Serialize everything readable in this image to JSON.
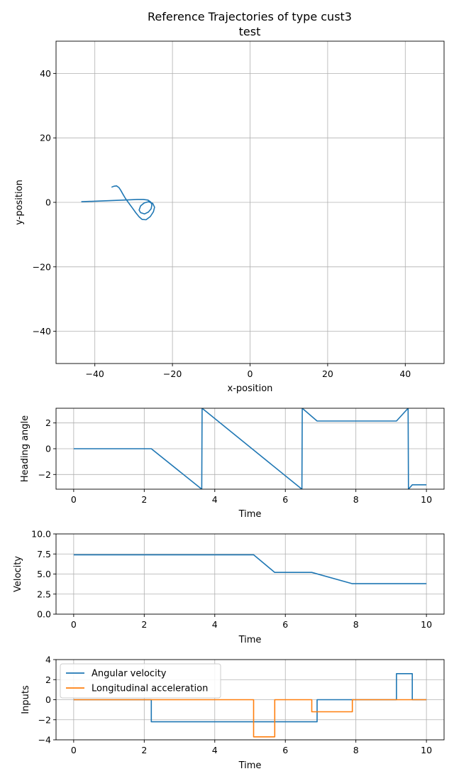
{
  "title_line1": "Reference Trajectories of type cust3",
  "title_line2": "test",
  "colors": {
    "series1": "#1f77b4",
    "series2": "#ff7f0e",
    "grid": "#b0b0b0"
  },
  "chart_data": [
    {
      "type": "line",
      "title": "Reference Trajectories of type cust3\ntest",
      "xlabel": "x-position",
      "ylabel": "y-position",
      "xlim": [
        -50,
        50
      ],
      "ylim": [
        -50,
        50
      ],
      "xticks": [
        -40,
        -20,
        0,
        20,
        40
      ],
      "yticks": [
        -40,
        -20,
        0,
        20,
        40
      ],
      "xtick_labels": [
        "−40",
        "−20",
        "0",
        "20",
        "40"
      ],
      "ytick_labels": [
        "−40",
        "−20",
        "0",
        "20",
        "40"
      ],
      "grid": true,
      "series": [
        {
          "x": [
            -43.5,
            -39,
            -35,
            -31,
            -29,
            -27.5,
            -26.3,
            -25.6,
            -25.3,
            -25.5,
            -26.2,
            -27.2,
            -28.2,
            -28.6,
            -28.2,
            -27.3,
            -26.2,
            -25.1,
            -24.6,
            -24.9,
            -25.7,
            -26.8,
            -27.8,
            -28.6,
            -29.4,
            -30.3,
            -31.2,
            -32.1,
            -32.8,
            -33.3,
            -33.8,
            -34.4,
            -35.1,
            -35.7
          ],
          "y": [
            0.2,
            0.4,
            0.6,
            0.8,
            0.9,
            0.9,
            0.7,
            0.1,
            -0.8,
            -2.0,
            -3.0,
            -3.6,
            -3.2,
            -2.4,
            -1.1,
            -0.2,
            0.2,
            -0.3,
            -1.5,
            -2.9,
            -4.4,
            -5.4,
            -5.3,
            -4.5,
            -3.3,
            -1.8,
            -0.3,
            1.2,
            2.6,
            3.7,
            4.6,
            5.1,
            5.0,
            4.7
          ]
        }
      ]
    },
    {
      "type": "line",
      "xlabel": "Time",
      "ylabel": "Heading angle",
      "xlim": [
        -0.5,
        10.5
      ],
      "ylim": [
        -3.14,
        3.14
      ],
      "xticks": [
        0,
        2,
        4,
        6,
        8,
        10
      ],
      "yticks": [
        -2,
        0,
        2
      ],
      "xtick_labels": [
        "0",
        "2",
        "4",
        "6",
        "8",
        "10"
      ],
      "ytick_labels": [
        "−2",
        "0",
        "2"
      ],
      "grid": true,
      "series": [
        {
          "x": [
            0,
            2.2,
            3.63,
            3.64,
            6.47,
            6.48,
            6.9,
            9.15,
            9.48,
            9.49,
            9.6,
            10
          ],
          "y": [
            0,
            0,
            -3.14,
            3.14,
            -3.14,
            3.14,
            2.15,
            2.15,
            3.14,
            -3.14,
            -2.8,
            -2.8
          ]
        }
      ]
    },
    {
      "type": "line",
      "xlabel": "Time",
      "ylabel": "Velocity",
      "xlim": [
        -0.5,
        10.5
      ],
      "ylim": [
        0,
        10
      ],
      "xticks": [
        0,
        2,
        4,
        6,
        8,
        10
      ],
      "yticks": [
        0.0,
        2.5,
        5.0,
        7.5,
        10.0
      ],
      "xtick_labels": [
        "0",
        "2",
        "4",
        "6",
        "8",
        "10"
      ],
      "ytick_labels": [
        "0.0",
        "2.5",
        "5.0",
        "7.5",
        "10.0"
      ],
      "grid": true,
      "series": [
        {
          "x": [
            0,
            5.1,
            5.7,
            6.75,
            7.9,
            10
          ],
          "y": [
            7.4,
            7.4,
            5.2,
            5.2,
            3.8,
            3.8
          ]
        }
      ]
    },
    {
      "type": "line",
      "xlabel": "Time",
      "ylabel": "Inputs",
      "xlim": [
        -0.5,
        10.5
      ],
      "ylim": [
        -4,
        4
      ],
      "xticks": [
        0,
        2,
        4,
        6,
        8,
        10
      ],
      "yticks": [
        -4,
        -2,
        0,
        2,
        4
      ],
      "xtick_labels": [
        "0",
        "2",
        "4",
        "6",
        "8",
        "10"
      ],
      "ytick_labels": [
        "−4",
        "−2",
        "0",
        "2",
        "4"
      ],
      "grid": true,
      "legend": "top-left",
      "series": [
        {
          "name": "Angular velocity",
          "x": [
            0,
            2.2,
            2.2,
            6.9,
            6.9,
            9.15,
            9.15,
            9.6,
            9.6,
            10
          ],
          "y": [
            0,
            0,
            -2.2,
            -2.2,
            0,
            0,
            2.6,
            2.6,
            0,
            0
          ]
        },
        {
          "name": "Longitudinal acceleration",
          "x": [
            0,
            5.1,
            5.1,
            5.7,
            5.7,
            6.75,
            6.75,
            7.9,
            7.9,
            10
          ],
          "y": [
            0,
            0,
            -3.7,
            -3.7,
            0,
            0,
            -1.2,
            -1.2,
            0,
            0
          ]
        }
      ]
    }
  ]
}
